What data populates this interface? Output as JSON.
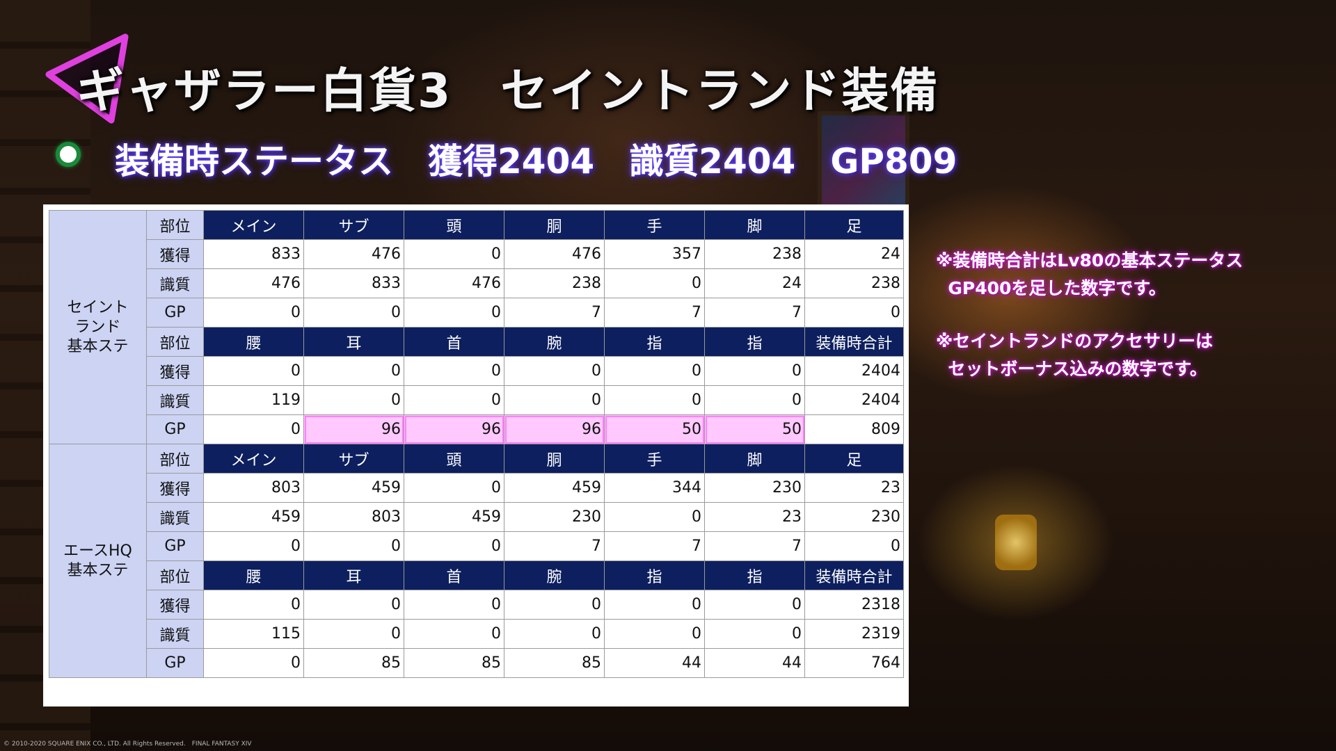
{
  "header": {
    "title": "ギャザラー白貨3　セイントランド装備",
    "status_line": "装備時ステータス　獲得2404　識質2404　GP809"
  },
  "notes": [
    "※装備時合計はLv80の基本ステータス\n  GP400を足した数字です。",
    "※セイントランドのアクセサリーは\n  セットボーナス込みの数字です。"
  ],
  "table": {
    "groups": [
      {
        "label": "セイント\nランド\n基本ステ",
        "sections": [
          {
            "header": [
              "部位",
              "メイン",
              "サブ",
              "頭",
              "胴",
              "手",
              "脚",
              "足"
            ],
            "rows": [
              [
                "獲得",
                "833",
                "476",
                "0",
                "476",
                "357",
                "238",
                "24"
              ],
              [
                "識質",
                "476",
                "833",
                "476",
                "238",
                "0",
                "24",
                "238"
              ],
              [
                "GP",
                "0",
                "0",
                "0",
                "7",
                "7",
                "7",
                "0"
              ]
            ]
          },
          {
            "header": [
              "部位",
              "腰",
              "耳",
              "首",
              "腕",
              "指",
              "指",
              "装備時合計"
            ],
            "rows": [
              [
                "獲得",
                "0",
                "0",
                "0",
                "0",
                "0",
                "0",
                "2404"
              ],
              [
                "識質",
                "119",
                "0",
                "0",
                "0",
                "0",
                "0",
                "2404"
              ],
              [
                "GP",
                "0",
                "96",
                "96",
                "96",
                "50",
                "50",
                "809"
              ]
            ]
          }
        ]
      },
      {
        "label": "エースHQ\n基本ステ",
        "sections": [
          {
            "header": [
              "部位",
              "メイン",
              "サブ",
              "頭",
              "胴",
              "手",
              "脚",
              "足"
            ],
            "rows": [
              [
                "獲得",
                "803",
                "459",
                "0",
                "459",
                "344",
                "230",
                "23"
              ],
              [
                "識質",
                "459",
                "803",
                "459",
                "230",
                "0",
                "23",
                "230"
              ],
              [
                "GP",
                "0",
                "0",
                "0",
                "7",
                "7",
                "7",
                "0"
              ]
            ]
          },
          {
            "header": [
              "部位",
              "腰",
              "耳",
              "首",
              "腕",
              "指",
              "指",
              "装備時合計"
            ],
            "rows": [
              [
                "獲得",
                "0",
                "0",
                "0",
                "0",
                "0",
                "0",
                "2318"
              ],
              [
                "識質",
                "115",
                "0",
                "0",
                "0",
                "0",
                "0",
                "2319"
              ],
              [
                "GP",
                "0",
                "85",
                "85",
                "85",
                "44",
                "44",
                "764"
              ]
            ]
          }
        ]
      }
    ]
  },
  "footer": {
    "copyright": "© 2010-2020 SQUARE ENIX CO., LTD. All Rights Reserved.　FINAL FANTASY XIV"
  },
  "colors": {
    "header_row_bg": "#0d1f5e",
    "label_cell_bg": "#ccd3f3",
    "highlight_bg": "#ffc8ff",
    "highlight_border": "#ff80ff",
    "bullet_ring": "#1a8a3a",
    "title_triangle": "#e040e0"
  },
  "highlight": {
    "group": 0,
    "section": 1,
    "row": 2,
    "cols": [
      2,
      3,
      4,
      5,
      6
    ]
  },
  "icons": {
    "title_marker": "back-triangle-icon",
    "status_bullet": "circle-bullet-icon"
  }
}
